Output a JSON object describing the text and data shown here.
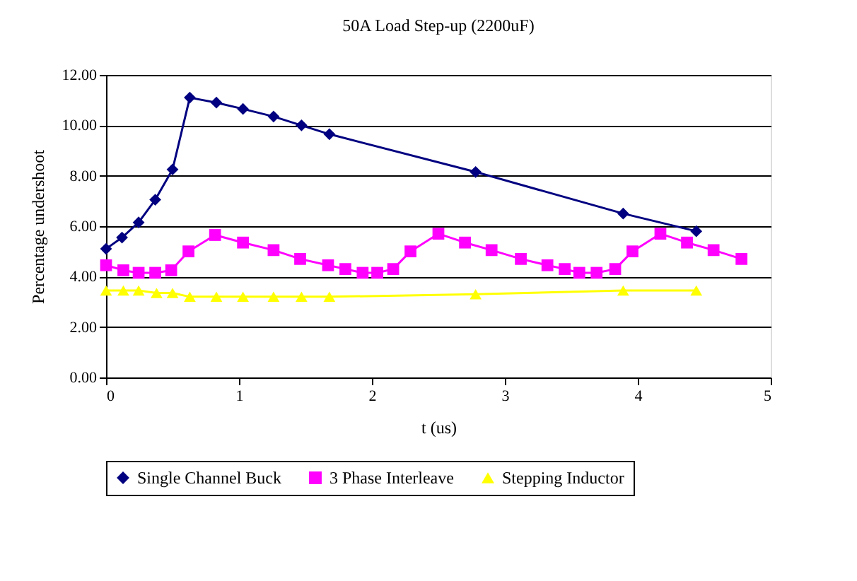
{
  "chart_data": {
    "type": "line",
    "title": "50A Load Step-up (2200uF)",
    "xlabel": "t (us)",
    "ylabel": "Percentage undershoot",
    "xlim": [
      0,
      5
    ],
    "xticks": [
      0,
      1,
      2,
      3,
      4,
      5
    ],
    "ylim": [
      0,
      12
    ],
    "yticks": [
      {
        "value": 0,
        "label": "0.00"
      },
      {
        "value": 2,
        "label": "2.00"
      },
      {
        "value": 4,
        "label": "4.00"
      },
      {
        "value": 6,
        "label": "6.00"
      },
      {
        "value": 8,
        "label": "8.00"
      },
      {
        "value": 10,
        "label": "10.00"
      },
      {
        "value": 12,
        "label": "12.00"
      }
    ],
    "grid": "y",
    "legend": "bottom",
    "line_style": "solid",
    "series": [
      {
        "name": "Single Channel Buck",
        "color": "#000080",
        "marker": "diamond",
        "x": [
          0,
          0.12,
          0.245,
          0.37,
          0.5,
          0.63,
          0.83,
          1.03,
          1.26,
          1.47,
          1.68,
          2.78,
          3.89,
          4.44
        ],
        "values": [
          5.1,
          5.55,
          6.15,
          7.05,
          8.25,
          11.1,
          10.9,
          10.65,
          10.35,
          10.0,
          9.65,
          8.15,
          6.5,
          5.8
        ]
      },
      {
        "name": "3 Phase Interleave",
        "color": "#ff00ff",
        "marker": "square",
        "x": [
          0,
          0.13,
          0.245,
          0.37,
          0.49,
          0.62,
          0.82,
          1.03,
          1.26,
          1.46,
          1.67,
          1.8,
          1.93,
          2.04,
          2.16,
          2.29,
          2.5,
          2.7,
          2.9,
          3.12,
          3.32,
          3.45,
          3.56,
          3.69,
          3.83,
          3.96,
          4.17,
          4.37,
          4.57,
          4.78
        ],
        "values": [
          4.45,
          4.25,
          4.15,
          4.15,
          4.25,
          5.0,
          5.65,
          5.35,
          5.05,
          4.7,
          4.45,
          4.3,
          4.15,
          4.15,
          4.3,
          5.0,
          5.7,
          5.35,
          5.05,
          4.7,
          4.45,
          4.3,
          4.15,
          4.15,
          4.3,
          5.0,
          5.7,
          5.35,
          5.05,
          4.7
        ]
      },
      {
        "name": "Stepping Inductor",
        "color": "#ffff00",
        "marker": "triangle",
        "x": [
          0,
          0.13,
          0.245,
          0.38,
          0.5,
          0.63,
          0.83,
          1.03,
          1.26,
          1.47,
          1.68,
          2.78,
          3.89,
          4.44
        ],
        "values": [
          3.45,
          3.45,
          3.45,
          3.35,
          3.35,
          3.2,
          3.2,
          3.2,
          3.2,
          3.2,
          3.2,
          3.3,
          3.45,
          3.45
        ]
      }
    ]
  }
}
